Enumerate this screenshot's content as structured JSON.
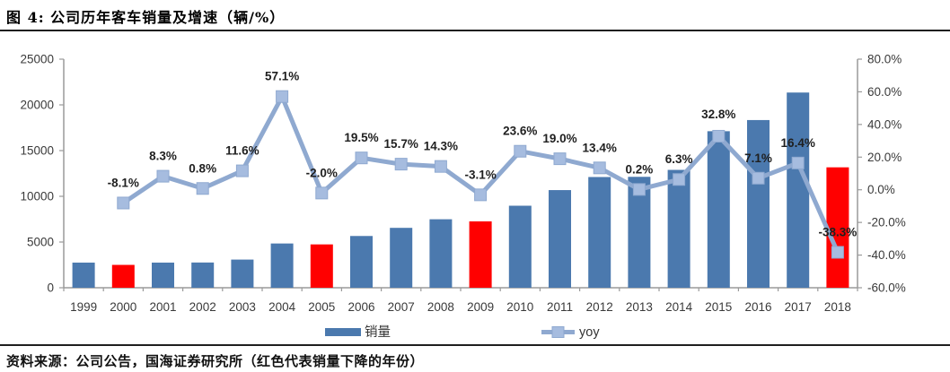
{
  "figure_title": "图 4: 公司历年客车销量及增速（辆/%）",
  "source_note": "资料来源：公司公告，国海证券研究所（红色代表销量下降的年份）",
  "chart_data": {
    "type": "bar",
    "subtype": "bar-line-combo",
    "title": "公司历年客车销量及增速（辆/%）",
    "categories": [
      "1999",
      "2000",
      "2001",
      "2002",
      "2003",
      "2004",
      "2005",
      "2006",
      "2007",
      "2008",
      "2009",
      "2010",
      "2011",
      "2012",
      "2013",
      "2014",
      "2015",
      "2016",
      "2017",
      "2018"
    ],
    "series": [
      {
        "name": "销量",
        "type": "bar",
        "axis": "left",
        "values": [
          2750,
          2500,
          2750,
          2760,
          3080,
          4840,
          4740,
          5660,
          6550,
          7490,
          7260,
          8970,
          10680,
          12110,
          12130,
          12890,
          17120,
          18340,
          21350,
          13170
        ]
      },
      {
        "name": "yoy",
        "type": "line",
        "axis": "right",
        "values": [
          null,
          -8.1,
          8.3,
          0.8,
          11.6,
          57.1,
          -2.0,
          19.5,
          15.7,
          14.3,
          -3.1,
          23.6,
          19.0,
          13.4,
          0.2,
          6.3,
          32.8,
          7.1,
          16.4,
          -38.3
        ],
        "point_labels": [
          null,
          "-8.1%",
          "8.3%",
          "0.8%",
          "11.6%",
          "57.1%",
          "-2.0%",
          "19.5%",
          "15.7%",
          "14.3%",
          "-3.1%",
          "23.6%",
          "19.0%",
          "13.4%",
          "0.2%",
          "6.3%",
          "32.8%",
          "7.1%",
          "16.4%",
          "-38.3%"
        ]
      }
    ],
    "decline_years": [
      "2000",
      "2005",
      "2009",
      "2018"
    ],
    "left_axis": {
      "min": 0,
      "max": 25000,
      "tick_labels": [
        "0",
        "5000",
        "10000",
        "15000",
        "20000",
        "25000"
      ]
    },
    "right_axis": {
      "min": -60,
      "max": 80,
      "tick_labels": [
        "-60.0%",
        "-40.0%",
        "-20.0%",
        "0.0%",
        "20.0%",
        "40.0%",
        "60.0%",
        "80.0%"
      ]
    },
    "legend": {
      "position": "bottom",
      "entries": [
        "销量",
        "yoy"
      ]
    },
    "grid": "off",
    "colors": {
      "bar": "#4b79ae",
      "bar_decline": "#ff0000",
      "line": "#8fa9d0",
      "marker_fill": "#a6bcdf",
      "axis": "#9a9a9a",
      "point_label": "#1f1f1f",
      "tick_text": "#3a3a3a"
    }
  }
}
